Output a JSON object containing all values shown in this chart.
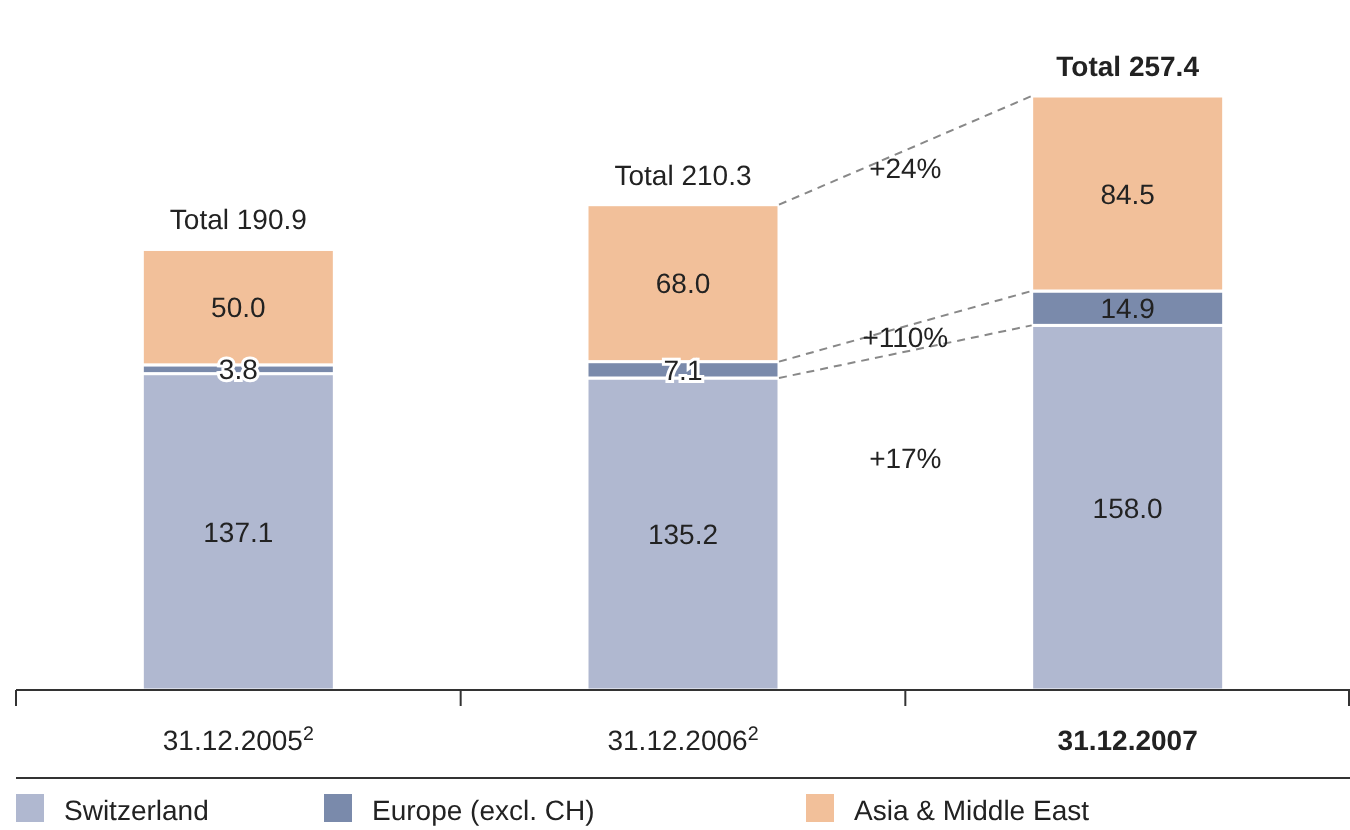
{
  "chart_data": {
    "type": "bar",
    "stacked": true,
    "categories": [
      "31.12.2005$^{2}$",
      "31.12.2006$^{2}$",
      "31.12.2007"
    ],
    "series": [
      {
        "name": "Switzerland",
        "color": "#b0b8d0",
        "values": [
          137.1,
          135.2,
          158
        ],
        "value_labels": [
          "137.1",
          "135.2",
          "158.0"
        ]
      },
      {
        "name": "Europe (excl. CH)",
        "color": "#7a8aab",
        "values": [
          3.8,
          7.1,
          14.9
        ],
        "value_labels": [
          "3.8",
          "7.1",
          "14.9"
        ]
      },
      {
        "name": "Asia & Middle East",
        "color": "#f2c09a",
        "values": [
          50,
          68,
          84.5
        ],
        "value_labels": [
          "50.0",
          "68.0",
          "84.5"
        ]
      }
    ],
    "totals": [
      "Total 190.9",
      "Total 210.3",
      "Total 257.4"
    ],
    "annotations": [
      "+24%",
      "+110%",
      "+17%"
    ],
    "legend": "bottom"
  }
}
